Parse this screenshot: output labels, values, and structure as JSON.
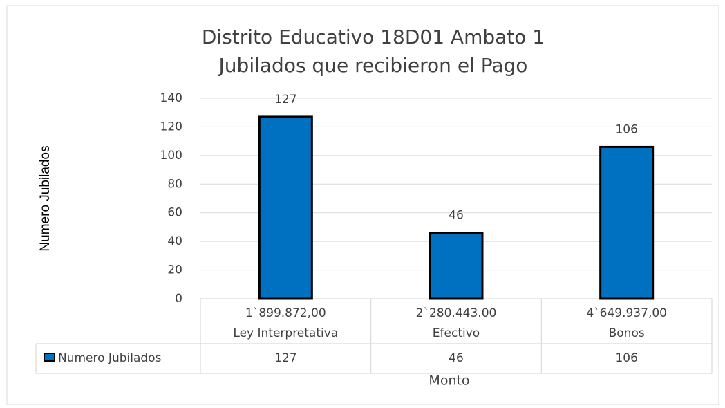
{
  "chart_data": {
    "type": "bar",
    "title": [
      "Distrito Educativo 18D01 Ambato 1",
      "Jubilados que recibieron el Pago"
    ],
    "y_label": "Numero Jubilados",
    "x_label": "Monto",
    "categories": [
      "Ley Interpretativa",
      "Efectivo",
      "Bonos"
    ],
    "category_amounts": [
      "1`899.872,00",
      "2`280.443.00",
      "4`649.937,00"
    ],
    "series": [
      {
        "name": "Numero Jubilados",
        "color": "#0070c0",
        "values": [
          127,
          46,
          106
        ]
      }
    ],
    "ylim": [
      0,
      140
    ],
    "yticks": [
      0,
      20,
      40,
      60,
      80,
      100,
      120,
      140
    ],
    "grid": true,
    "data_table": true
  }
}
